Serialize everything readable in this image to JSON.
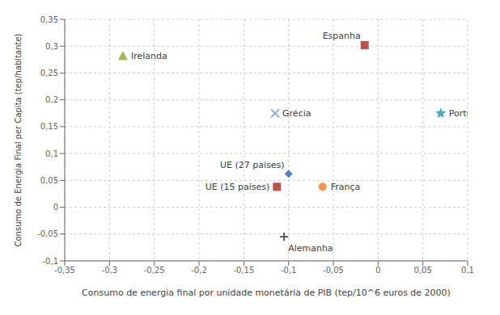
{
  "chart_data": {
    "type": "scatter",
    "xlabel": "Consumo de energia final por unidade  monetária de PIB (tep/10^6 euros de 2000)",
    "ylabel": "Consumo de Energia Final per Capita (tep/habitante)",
    "xlim": [
      -0.35,
      0.1
    ],
    "ylim": [
      -0.1,
      0.35
    ],
    "xticks": [
      {
        "value": -0.35,
        "label": "-0,35"
      },
      {
        "value": -0.3,
        "label": "-0,3"
      },
      {
        "value": -0.25,
        "label": "-0,25"
      },
      {
        "value": -0.2,
        "label": "-0,2"
      },
      {
        "value": -0.15,
        "label": "-0,15"
      },
      {
        "value": -0.1,
        "label": "-0,1"
      },
      {
        "value": -0.05,
        "label": "-0,05"
      },
      0,
      {
        "value": 0.05,
        "label": "0,05"
      },
      {
        "value": 0.1,
        "label": "0,1"
      }
    ],
    "yticks": [
      {
        "value": -0.1,
        "label": "-0,1"
      },
      {
        "value": -0.05,
        "label": "-0,05"
      },
      0,
      {
        "value": 0.05,
        "label": "0,05"
      },
      {
        "value": 0.1,
        "label": "0,1"
      },
      {
        "value": 0.15,
        "label": "0,15"
      },
      {
        "value": 0.2,
        "label": "0,2"
      },
      {
        "value": 0.25,
        "label": "0,25"
      },
      {
        "value": 0.3,
        "label": "0,3"
      },
      {
        "value": 0.35,
        "label": "0,35"
      }
    ],
    "grid": true,
    "series": [
      {
        "name": "Espanha",
        "color": "#c0504d",
        "marker": "square",
        "x": [
          -0.015
        ],
        "values": [
          0.302
        ]
      },
      {
        "name": "Irelanda",
        "color": "#9bbb59",
        "marker": "triangle",
        "x": [
          -0.285
        ],
        "values": [
          0.282
        ]
      },
      {
        "name": "Grécia",
        "color": "#8db4e2",
        "marker": "x",
        "x": [
          -0.115
        ],
        "values": [
          0.175
        ]
      },
      {
        "name": "Portugal",
        "color": "#4bacc6",
        "marker": "star",
        "x": [
          0.07
        ],
        "values": [
          0.175
        ]
      },
      {
        "name": "UE (27 paises)",
        "color": "#4f81bd",
        "marker": "diamond",
        "x": [
          -0.1
        ],
        "values": [
          0.062
        ]
      },
      {
        "name": "UE (15 paises)",
        "color": "#c0504d",
        "marker": "square",
        "x": [
          -0.113
        ],
        "values": [
          0.038
        ]
      },
      {
        "name": "França",
        "color": "#f79646",
        "marker": "circle",
        "x": [
          -0.062
        ],
        "values": [
          0.038
        ]
      },
      {
        "name": "Alemanha",
        "color": "#595959",
        "marker": "plus",
        "x": [
          -0.105
        ],
        "values": [
          -0.055
        ]
      }
    ]
  }
}
